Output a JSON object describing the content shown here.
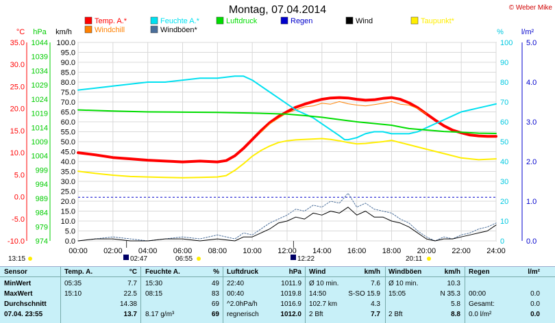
{
  "header": {
    "title": "Montag, 07.04.2014",
    "copyright": "© Weber Mike"
  },
  "colors": {
    "temp": "#ff0000",
    "humidity": "#00e0f0",
    "pressure": "#00dd00",
    "rain": "#0000cc",
    "wind": "#000000",
    "dewpoint": "#ffee00",
    "windchill": "#ff8000",
    "gust": "#4a6e9a"
  },
  "chart_data": {
    "type": "line",
    "title": "Montag, 07.04.2014",
    "x_range": [
      "00:00",
      "24:00"
    ],
    "x_ticks": [
      "00:00",
      "02:00",
      "04:00",
      "06:00",
      "08:00",
      "10:00",
      "12:00",
      "14:00",
      "16:00",
      "18:00",
      "20:00",
      "22:00",
      "24:00"
    ],
    "axes": {
      "temp": {
        "unit": "°C",
        "range": [
          -10,
          35
        ],
        "ticks": [
          "35.0",
          "30.0",
          "25.0",
          "20.0",
          "15.0",
          "10.0",
          "5.0",
          "0.0",
          "-5.0",
          "-10.0"
        ]
      },
      "pressure": {
        "unit": "hPa",
        "range": [
          974,
          1044
        ],
        "ticks": [
          "1044",
          "1039",
          "1034",
          "1029",
          "1024",
          "1019",
          "1014",
          "1009",
          "1004",
          "999",
          "994",
          "989",
          "984",
          "979",
          "974"
        ]
      },
      "wind": {
        "unit": "km/h",
        "range": [
          0,
          100
        ],
        "ticks": [
          "100.0",
          "95.0",
          "90.0",
          "85.0",
          "80.0",
          "75.0",
          "70.0",
          "65.0",
          "60.0",
          "55.0",
          "50.0",
          "45.0",
          "40.0",
          "35.0",
          "30.0",
          "25.0",
          "20.0",
          "15.0",
          "10.0",
          "5.0",
          "0.0"
        ]
      },
      "humidity": {
        "unit": "%",
        "range": [
          0,
          100
        ],
        "ticks": [
          "100",
          "90",
          "80",
          "70",
          "60",
          "50",
          "40",
          "30",
          "20",
          "10",
          "0"
        ]
      },
      "rain": {
        "unit": "l/m²",
        "range": [
          0,
          5
        ],
        "ticks": [
          "5.0",
          "4.0",
          "3.0",
          "2.0",
          "1.0",
          "0.0"
        ]
      }
    },
    "legend": [
      {
        "name": "Temp. A.*",
        "color": "#ff0000"
      },
      {
        "name": "Feuchte A.*",
        "color": "#00e0f0"
      },
      {
        "name": "Luftdruck",
        "color": "#00dd00"
      },
      {
        "name": "Regen",
        "color": "#0000cc"
      },
      {
        "name": "Wind",
        "color": "#000000"
      },
      {
        "name": "Taupunkt*",
        "color": "#ffee00"
      },
      {
        "name": "Windchill",
        "color": "#ff8000"
      },
      {
        "name": "Windböen*",
        "color": "#4a6e9a"
      }
    ],
    "series": [
      {
        "name": "Temp. A.*",
        "axis": "temp",
        "color": "#ff0000",
        "width": 4,
        "x": [
          0,
          1,
          2,
          3,
          4,
          5,
          6,
          7,
          8,
          8.5,
          9,
          9.5,
          10,
          10.5,
          11,
          11.5,
          12,
          12.5,
          13,
          13.5,
          14,
          14.5,
          15,
          15.5,
          16,
          16.5,
          17,
          17.5,
          18,
          18.5,
          19,
          19.5,
          20,
          20.5,
          21,
          21.5,
          22,
          22.5,
          23,
          23.5,
          24
        ],
        "y": [
          10.0,
          9.5,
          8.9,
          8.6,
          8.3,
          8.1,
          7.9,
          8.1,
          7.9,
          8.2,
          9.3,
          11.0,
          13.0,
          15.0,
          16.8,
          18.2,
          19.3,
          20.3,
          21.0,
          21.6,
          22.1,
          22.4,
          22.5,
          22.4,
          22.1,
          21.9,
          22.0,
          22.3,
          22.5,
          22.1,
          21.3,
          20.2,
          18.8,
          17.4,
          16.1,
          15.1,
          14.5,
          14.0,
          13.8,
          13.7,
          13.7
        ]
      },
      {
        "name": "Windchill",
        "axis": "temp",
        "color": "#ff8000",
        "width": 1,
        "x": [
          10.5,
          11,
          11.5,
          12,
          12.5,
          13,
          13.5,
          14,
          14.5,
          15,
          15.5,
          16,
          16.5,
          17,
          17.5,
          18,
          18.5,
          19,
          19.5,
          20
        ],
        "y": [
          14.6,
          16.5,
          17.8,
          19.0,
          19.7,
          20.4,
          20.6,
          21.2,
          21.0,
          21.6,
          21.1,
          20.8,
          20.6,
          20.9,
          21.2,
          21.6,
          21.0,
          20.8,
          20.0,
          18.8
        ]
      },
      {
        "name": "Feuchte A.*",
        "axis": "humidity",
        "color": "#00e0f0",
        "width": 2,
        "x": [
          0,
          1,
          2,
          3,
          4,
          5,
          6,
          7,
          8,
          9,
          9.5,
          10,
          10.5,
          11,
          11.5,
          12,
          12.5,
          13,
          13.5,
          14,
          14.5,
          15,
          15.3,
          15.5,
          16,
          16.5,
          17,
          17.5,
          18,
          18.5,
          19,
          19.5,
          20,
          20.5,
          21,
          21.5,
          22,
          22.5,
          23,
          23.5,
          24
        ],
        "y": [
          76,
          77,
          78,
          79,
          80,
          80,
          81,
          82,
          82,
          83,
          83,
          81,
          78,
          75,
          72,
          69,
          66,
          64,
          62,
          59,
          56,
          53,
          51,
          51,
          52,
          54,
          55,
          55,
          54,
          54,
          54,
          55,
          57,
          59,
          61,
          63,
          65,
          66,
          67,
          68,
          69
        ]
      },
      {
        "name": "Luftdruck",
        "axis": "pressure",
        "color": "#00dd00",
        "width": 2,
        "x": [
          0,
          2,
          4,
          6,
          8,
          10,
          12,
          13,
          14,
          15,
          16,
          17,
          18,
          18.5,
          19,
          20,
          21,
          22,
          23,
          24
        ],
        "y": [
          1020.2,
          1019.8,
          1019.5,
          1019.4,
          1019.3,
          1019.1,
          1018.7,
          1018.2,
          1017.6,
          1016.8,
          1016.0,
          1015.4,
          1014.8,
          1014.2,
          1013.6,
          1013.1,
          1012.6,
          1012.3,
          1012.0,
          1011.9
        ]
      },
      {
        "name": "Taupunkt*",
        "axis": "temp",
        "color": "#ffee00",
        "width": 2,
        "x": [
          0,
          1,
          2,
          3,
          4,
          5,
          6,
          7,
          8,
          8.5,
          9,
          9.5,
          10,
          10.5,
          11,
          11.5,
          12,
          12.5,
          13,
          13.5,
          14,
          14.5,
          15,
          15.5,
          16,
          16.5,
          17,
          17.5,
          18,
          18.5,
          19,
          20,
          21,
          22,
          23,
          24
        ],
        "y": [
          5.8,
          5.3,
          4.9,
          4.6,
          4.5,
          4.4,
          4.3,
          4.4,
          4.5,
          4.8,
          6.0,
          7.5,
          9.2,
          10.5,
          11.5,
          12.3,
          12.7,
          12.9,
          13.0,
          13.1,
          13.2,
          13.0,
          12.7,
          12.3,
          12.0,
          12.1,
          12.3,
          12.5,
          12.8,
          12.3,
          11.8,
          10.8,
          9.8,
          8.8,
          8.4,
          8.6
        ]
      },
      {
        "name": "Windböen*",
        "axis": "wind",
        "color": "#4a6e9a",
        "width": 1,
        "dashed": true,
        "x": [
          0,
          1,
          2,
          3,
          4,
          5,
          6,
          7,
          8,
          9,
          9.5,
          10,
          10.5,
          11,
          11.5,
          12,
          12.5,
          13,
          13.5,
          14,
          14.5,
          15,
          15.5,
          16,
          16.5,
          17,
          17.5,
          18,
          18.5,
          19,
          19.5,
          20,
          20.5,
          21,
          21.5,
          22,
          22.5,
          23,
          23.5,
          24
        ],
        "y": [
          0,
          1,
          2,
          1,
          0,
          1,
          2,
          1,
          3,
          1,
          4,
          3,
          6,
          9,
          11,
          13,
          16,
          15,
          18,
          17,
          20,
          19,
          24,
          17,
          19,
          16,
          15,
          14,
          11,
          9,
          5,
          2,
          0,
          2,
          1,
          3,
          4,
          6,
          7,
          9
        ]
      },
      {
        "name": "Wind",
        "axis": "wind",
        "color": "#000000",
        "width": 1,
        "x": [
          0,
          1,
          2,
          3,
          4,
          5,
          6,
          7,
          8,
          9,
          9.5,
          10,
          10.5,
          11,
          11.5,
          12,
          12.5,
          13,
          13.5,
          14,
          14.5,
          15,
          15.5,
          16,
          16.5,
          17,
          17.5,
          18,
          18.5,
          19,
          19.5,
          20,
          20.5,
          21,
          21.5,
          22,
          22.5,
          23,
          23.5,
          24
        ],
        "y": [
          0,
          1,
          1,
          0,
          0,
          1,
          1,
          0,
          1,
          0,
          2,
          2,
          4,
          6,
          9,
          10,
          12,
          11,
          14,
          13,
          15,
          14,
          17,
          13,
          15,
          12,
          12,
          10,
          9,
          7,
          4,
          1,
          0,
          1,
          1,
          2,
          3,
          4,
          5,
          8
        ]
      }
    ],
    "rain_dashed_level": 1.1,
    "grid": true,
    "legend_position": "top"
  },
  "markers": {
    "sunrise": "06:55",
    "sunset": "20:11",
    "moonset": "02:47",
    "moonrise": "12:22",
    "mark_1315": "13:15"
  },
  "table": {
    "headers": {
      "sensor": "Sensor",
      "temp": "Temp. A.",
      "temp_unit": "°C",
      "humidity": "Feuchte A.",
      "humidity_unit": "%",
      "pressure": "Luftdruck",
      "pressure_unit": "hPa",
      "wind": "Wind",
      "wind_unit": "km/h",
      "gust": "Windböen",
      "gust_unit": "km/h",
      "rain": "Regen",
      "rain_unit": "l/m²"
    },
    "rows": [
      {
        "label": "MinWert",
        "temp_time": "05:35",
        "temp_val": "7.7",
        "hum_time": "15:30",
        "hum_val": "49",
        "press_time": "22:40",
        "press_val": "1011.9",
        "wind_label": "Ø 10 min.",
        "wind_val": "7.6",
        "gust_label": "Ø 10 min.",
        "gust_val": "10.3",
        "rain_label": "",
        "rain_val": ""
      },
      {
        "label": "MaxWert",
        "temp_time": "15:10",
        "temp_val": "22.5",
        "hum_time": "08:15",
        "hum_val": "83",
        "press_time": "00:40",
        "press_val": "1019.8",
        "wind_label": "14:50",
        "wind_dir": "S-SO 15.9",
        "wind_val": "",
        "gust_label": "15:05",
        "gust_val": "N 35.3",
        "rain_label": "00:00",
        "rain_val": "0.0"
      },
      {
        "label": "Durchschnitt",
        "temp_time": "",
        "temp_val": "14.38",
        "hum_time": "",
        "hum_val": "69",
        "press_time": "^2.0hPa/h",
        "press_val": "1016.9",
        "wind_label": "102.7 km",
        "wind_val": "4.3",
        "gust_label": "",
        "gust_val": "5.8",
        "rain_label": "Gesamt:",
        "rain_val": "0.0"
      },
      {
        "label": "07.04. 23:55",
        "temp_time": "",
        "temp_val": "13.7",
        "hum_time": "8.17 g/m³",
        "hum_val": "69",
        "press_time": "regnerisch",
        "press_val": "1012.0",
        "wind_label": "2 Bft",
        "wind_val": "7.7",
        "gust_label": "2 Bft",
        "gust_val": "8.8",
        "rain_label": "0.0 l/m²",
        "rain_val": "0.0"
      }
    ]
  }
}
